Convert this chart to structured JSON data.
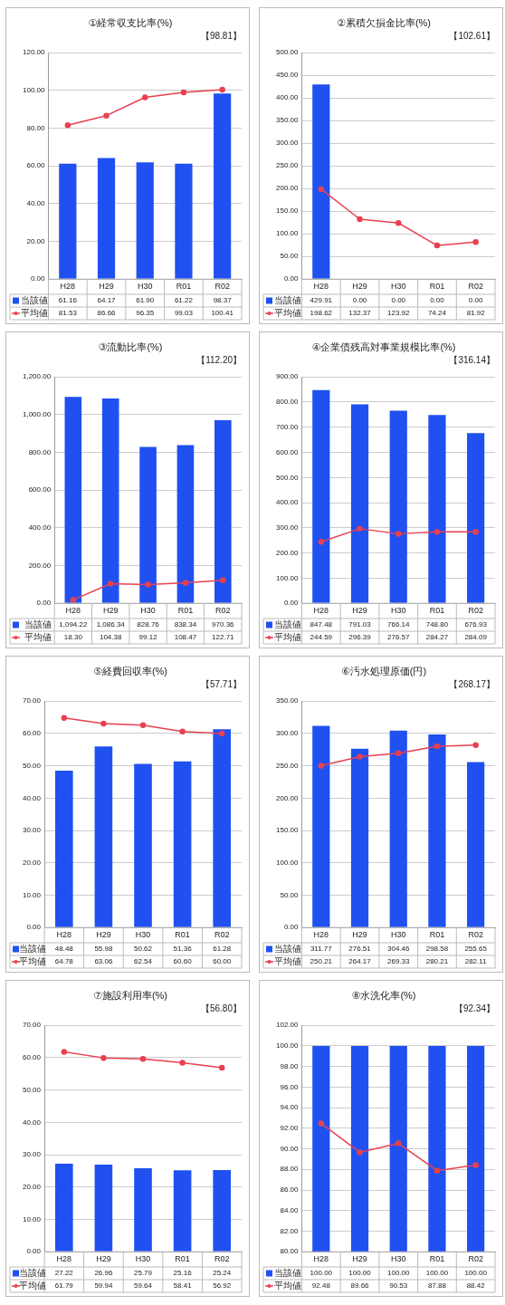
{
  "chart_data": [
    {
      "type": "bar",
      "title": "①経常収支比率(%)",
      "categories": [
        "H28",
        "H29",
        "H30",
        "R01",
        "R02"
      ],
      "series": [
        {
          "name": "当該値",
          "color": "#2050f0",
          "values": [
            61.16,
            64.17,
            61.9,
            61.22,
            98.37
          ],
          "value_labels": [
            "61.16",
            "64.17",
            "61.90",
            "61.22",
            "98.37"
          ]
        },
        {
          "name": "平均値",
          "type": "line",
          "color": "#e84050",
          "values": [
            81.53,
            86.66,
            96.35,
            99.03,
            100.41
          ],
          "value_labels": [
            "81.53",
            "86.66",
            "96.35",
            "99.03",
            "100.41"
          ]
        }
      ],
      "ylim": [
        0,
        120
      ],
      "yticks": [
        {
          "value": 0,
          "label": "0.00"
        },
        {
          "value": 20,
          "label": "20.00"
        },
        {
          "value": 40,
          "label": "40.00"
        },
        {
          "value": 60,
          "label": "60.00"
        },
        {
          "value": 80,
          "label": "80.00"
        },
        {
          "value": 100,
          "label": "100.00"
        },
        {
          "value": 120,
          "label": "120.00"
        }
      ],
      "grid": "y",
      "marker": "circle",
      "legend": "bottom left",
      "annotations": [
        "【98.81】"
      ]
    },
    {
      "type": "bar",
      "title": "②累積欠損金比率(%)",
      "categories": [
        "H28",
        "H29",
        "H30",
        "R01",
        "R02"
      ],
      "series": [
        {
          "name": "当該値",
          "color": "#2050f0",
          "values": [
            429.91,
            0,
            0,
            0,
            0
          ],
          "value_labels": [
            "429.91",
            "0.00",
            "0.00",
            "0.00",
            "0.00"
          ]
        },
        {
          "name": "平均値",
          "type": "line",
          "color": "#e84050",
          "values": [
            198.62,
            132.37,
            123.92,
            74.24,
            81.92
          ],
          "value_labels": [
            "198.62",
            "132.37",
            "123.92",
            "74.24",
            "81.92"
          ]
        }
      ],
      "ylim": [
        0,
        500
      ],
      "yticks": [
        {
          "value": 0,
          "label": "0.00"
        },
        {
          "value": 50,
          "label": "50.00"
        },
        {
          "value": 100,
          "label": "100.00"
        },
        {
          "value": 150,
          "label": "150.00"
        },
        {
          "value": 200,
          "label": "200.00"
        },
        {
          "value": 250,
          "label": "250.00"
        },
        {
          "value": 300,
          "label": "300.00"
        },
        {
          "value": 350,
          "label": "350.00"
        },
        {
          "value": 400,
          "label": "400.00"
        },
        {
          "value": 450,
          "label": "450.00"
        },
        {
          "value": 500,
          "label": "500.00"
        }
      ],
      "grid": "y",
      "marker": "circle",
      "legend": "bottom left",
      "annotations": [
        "【102.61】"
      ]
    },
    {
      "type": "bar",
      "title": "③流動比率(%)",
      "categories": [
        "H28",
        "H29",
        "H30",
        "R01",
        "R02"
      ],
      "series": [
        {
          "name": "当該値",
          "color": "#2050f0",
          "values": [
            1094.22,
            1086.34,
            828.76,
            838.34,
            970.36
          ],
          "value_labels": [
            "1,094.22",
            "1,086.34",
            "828.76",
            "838.34",
            "970.36"
          ]
        },
        {
          "name": "平均値",
          "type": "line",
          "color": "#e84050",
          "values": [
            18.3,
            104.38,
            99.12,
            108.47,
            122.71
          ],
          "value_labels": [
            "18.30",
            "104.38",
            "99.12",
            "108.47",
            "122.71"
          ]
        }
      ],
      "ylim": [
        0,
        1200
      ],
      "yticks": [
        {
          "value": 0,
          "label": "0.00"
        },
        {
          "value": 200,
          "label": "200.00"
        },
        {
          "value": 400,
          "label": "400.00"
        },
        {
          "value": 600,
          "label": "600.00"
        },
        {
          "value": 800,
          "label": "800.00"
        },
        {
          "value": 1000,
          "label": "1,000.00"
        },
        {
          "value": 1200,
          "label": "1,200.00"
        }
      ],
      "grid": "y",
      "marker": "circle",
      "legend": "bottom left",
      "annotations": [
        "【112.20】"
      ]
    },
    {
      "type": "bar",
      "title": "④企業債残高対事業規模比率(%)",
      "categories": [
        "H28",
        "H29",
        "H30",
        "R01",
        "R02"
      ],
      "series": [
        {
          "name": "当該値",
          "color": "#2050f0",
          "values": [
            847.48,
            791.03,
            766.14,
            748.8,
            676.93
          ],
          "value_labels": [
            "847.48",
            "791.03",
            "766.14",
            "748.80",
            "676.93"
          ]
        },
        {
          "name": "平均値",
          "type": "line",
          "color": "#e84050",
          "values": [
            244.59,
            296.39,
            276.57,
            284.27,
            284.09
          ],
          "value_labels": [
            "244.59",
            "296.39",
            "276.57",
            "284.27",
            "284.09"
          ]
        }
      ],
      "ylim": [
        0,
        900
      ],
      "yticks": [
        {
          "value": 0,
          "label": "0.00"
        },
        {
          "value": 100,
          "label": "100.00"
        },
        {
          "value": 200,
          "label": "200.00"
        },
        {
          "value": 300,
          "label": "300.00"
        },
        {
          "value": 400,
          "label": "400.00"
        },
        {
          "value": 500,
          "label": "500.00"
        },
        {
          "value": 600,
          "label": "600.00"
        },
        {
          "value": 700,
          "label": "700.00"
        },
        {
          "value": 800,
          "label": "800.00"
        },
        {
          "value": 900,
          "label": "900.00"
        }
      ],
      "grid": "y",
      "marker": "circle",
      "legend": "bottom left",
      "annotations": [
        "【316.14】"
      ]
    },
    {
      "type": "bar",
      "title": "⑤経費回収率(%)",
      "categories": [
        "H28",
        "H29",
        "H30",
        "R01",
        "R02"
      ],
      "series": [
        {
          "name": "当該値",
          "color": "#2050f0",
          "values": [
            48.48,
            55.98,
            50.62,
            51.36,
            61.28
          ],
          "value_labels": [
            "48.48",
            "55.98",
            "50.62",
            "51.36",
            "61.28"
          ]
        },
        {
          "name": "平均値",
          "type": "line",
          "color": "#e84050",
          "values": [
            64.78,
            63.06,
            62.54,
            60.6,
            60.0
          ],
          "value_labels": [
            "64.78",
            "63.06",
            "62.54",
            "60.60",
            "60.00"
          ]
        }
      ],
      "ylim": [
        0,
        70
      ],
      "yticks": [
        {
          "value": 0,
          "label": "0.00"
        },
        {
          "value": 10,
          "label": "10.00"
        },
        {
          "value": 20,
          "label": "20.00"
        },
        {
          "value": 30,
          "label": "30.00"
        },
        {
          "value": 40,
          "label": "40.00"
        },
        {
          "value": 50,
          "label": "50.00"
        },
        {
          "value": 60,
          "label": "60.00"
        },
        {
          "value": 70,
          "label": "70.00"
        }
      ],
      "grid": "y",
      "marker": "circle",
      "legend": "bottom left",
      "annotations": [
        "【57.71】"
      ]
    },
    {
      "type": "bar",
      "title": "⑥汚水処理原価(円)",
      "categories": [
        "H28",
        "H29",
        "H30",
        "R01",
        "R02"
      ],
      "series": [
        {
          "name": "当該値",
          "color": "#2050f0",
          "values": [
            311.77,
            276.51,
            304.46,
            298.58,
            255.65
          ],
          "value_labels": [
            "311.77",
            "276.51",
            "304.46",
            "298.58",
            "255.65"
          ]
        },
        {
          "name": "平均値",
          "type": "line",
          "color": "#e84050",
          "values": [
            250.21,
            264.17,
            269.33,
            280.21,
            282.11
          ],
          "value_labels": [
            "250.21",
            "264.17",
            "269.33",
            "280.21",
            "282.11"
          ]
        }
      ],
      "ylim": [
        0,
        350
      ],
      "yticks": [
        {
          "value": 0,
          "label": "0.00"
        },
        {
          "value": 50,
          "label": "50.00"
        },
        {
          "value": 100,
          "label": "100.00"
        },
        {
          "value": 150,
          "label": "150.00"
        },
        {
          "value": 200,
          "label": "200.00"
        },
        {
          "value": 250,
          "label": "250.00"
        },
        {
          "value": 300,
          "label": "300.00"
        },
        {
          "value": 350,
          "label": "350.00"
        }
      ],
      "grid": "y",
      "marker": "circle",
      "legend": "bottom left",
      "annotations": [
        "【268.17】"
      ]
    },
    {
      "type": "bar",
      "title": "⑦施設利用率(%)",
      "categories": [
        "H28",
        "H29",
        "H30",
        "R01",
        "R02"
      ],
      "series": [
        {
          "name": "当該値",
          "color": "#2050f0",
          "values": [
            27.22,
            26.96,
            25.79,
            25.16,
            25.24
          ],
          "value_labels": [
            "27.22",
            "26.96",
            "25.79",
            "25.16",
            "25.24"
          ]
        },
        {
          "name": "平均値",
          "type": "line",
          "color": "#e84050",
          "values": [
            61.79,
            59.94,
            59.64,
            58.41,
            56.92
          ],
          "value_labels": [
            "61.79",
            "59.94",
            "59.64",
            "58.41",
            "56.92"
          ]
        }
      ],
      "ylim": [
        0,
        70
      ],
      "yticks": [
        {
          "value": 0,
          "label": "0.00"
        },
        {
          "value": 10,
          "label": "10.00"
        },
        {
          "value": 20,
          "label": "20.00"
        },
        {
          "value": 30,
          "label": "30.00"
        },
        {
          "value": 40,
          "label": "40.00"
        },
        {
          "value": 50,
          "label": "50.00"
        },
        {
          "value": 60,
          "label": "60.00"
        },
        {
          "value": 70,
          "label": "70.00"
        }
      ],
      "grid": "y",
      "marker": "circle",
      "legend": "bottom left",
      "annotations": [
        "【56.80】"
      ]
    },
    {
      "type": "bar",
      "title": "⑧水洗化率(%)",
      "categories": [
        "H28",
        "H29",
        "H30",
        "R01",
        "R02"
      ],
      "series": [
        {
          "name": "当該値",
          "color": "#2050f0",
          "values": [
            100,
            100,
            100,
            100,
            100
          ],
          "value_labels": [
            "100.00",
            "100.00",
            "100.00",
            "100.00",
            "100.00"
          ]
        },
        {
          "name": "平均値",
          "type": "line",
          "color": "#e84050",
          "values": [
            92.48,
            89.66,
            90.53,
            87.88,
            88.42
          ],
          "value_labels": [
            "92.48",
            "89.66",
            "90.53",
            "87.88",
            "88.42"
          ]
        }
      ],
      "ylim": [
        80,
        102
      ],
      "yticks": [
        {
          "value": 80,
          "label": "80.00"
        },
        {
          "value": 82,
          "label": "82.00"
        },
        {
          "value": 84,
          "label": "84.00"
        },
        {
          "value": 86,
          "label": "86.00"
        },
        {
          "value": 88,
          "label": "88.00"
        },
        {
          "value": 90,
          "label": "90.00"
        },
        {
          "value": 92,
          "label": "92.00"
        },
        {
          "value": 94,
          "label": "94.00"
        },
        {
          "value": 96,
          "label": "96.00"
        },
        {
          "value": 98,
          "label": "98.00"
        },
        {
          "value": 100,
          "label": "100.00"
        },
        {
          "value": 102,
          "label": "102.00"
        }
      ],
      "grid": "y",
      "marker": "circle",
      "legend": "bottom left",
      "annotations": [
        "【92.34】"
      ]
    }
  ]
}
